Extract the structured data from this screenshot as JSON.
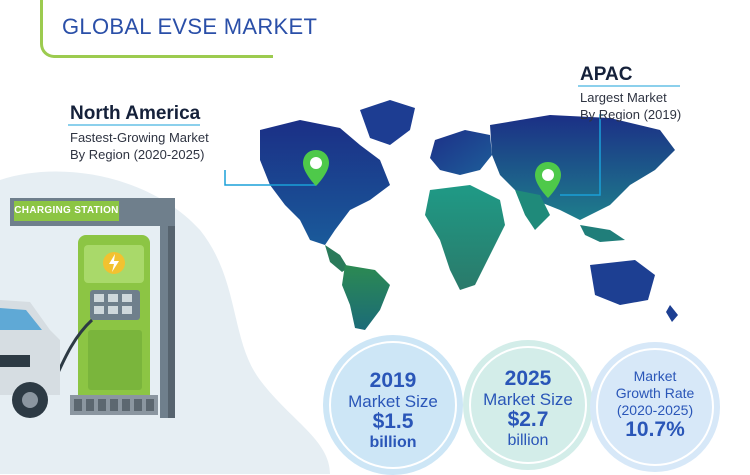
{
  "header": {
    "title": "GLOBAL EVSE MARKET"
  },
  "callouts": {
    "north_america": {
      "region": "North America",
      "line1": "Fastest-Growing Market",
      "line2": "By Region (2020-2025)"
    },
    "apac": {
      "region": "APAC",
      "line1": "Largest Market",
      "line2": "By Region (2019)"
    }
  },
  "illustration": {
    "station_label": "CHARGING STATION"
  },
  "stats": {
    "y2019": {
      "year": "2019",
      "label": "Market Size",
      "value": "$1.5",
      "unit": "billion"
    },
    "y2025": {
      "year": "2025",
      "label": "Market Size",
      "value": "$2.7",
      "unit": "billion"
    },
    "cagr": {
      "line1": "Market",
      "line2": "Growth Rate",
      "line3": "(2020-2025)",
      "value": "10.7%"
    }
  },
  "colors": {
    "accent_green": "#8cc544",
    "title_blue": "#2a4fa8",
    "map_dark_blue": "#1f3d8c",
    "map_teal": "#1e8a7a",
    "pin_green": "#4ec94a"
  },
  "icons": [
    "location-pin-icon",
    "lightning-bolt-icon"
  ]
}
